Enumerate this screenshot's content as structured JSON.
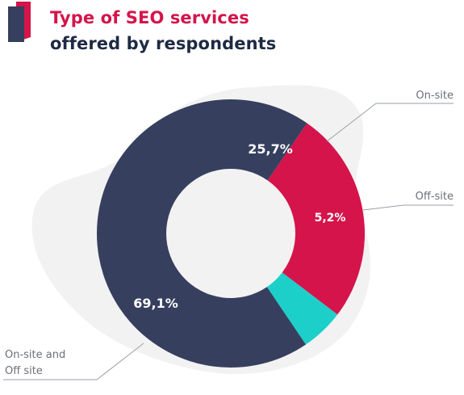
{
  "header": {
    "title_line1": "Type of SEO services",
    "title_line2": "offered by respondents"
  },
  "colors": {
    "brand_red": "#d4144a",
    "navy": "#363f5e",
    "teal": "#1ccfc9",
    "blob": "#f2f2f2",
    "leader": "#9aa0a8"
  },
  "chart_data": {
    "type": "pie",
    "variant": "donut",
    "title": "Type of SEO services offered by respondents",
    "series": [
      {
        "name": "On-site",
        "value": 25.7,
        "value_label": "25,7%",
        "color": "#d4144a"
      },
      {
        "name": "Off-site",
        "value": 5.2,
        "value_label": "5,2%",
        "color": "#1ccfc9"
      },
      {
        "name": "On-site and Off site",
        "value": 69.1,
        "value_label": "69,1%",
        "color": "#363f5e"
      }
    ],
    "external_labels": [
      "On-site",
      "Off-site",
      "On-site and",
      "Off site"
    ]
  }
}
